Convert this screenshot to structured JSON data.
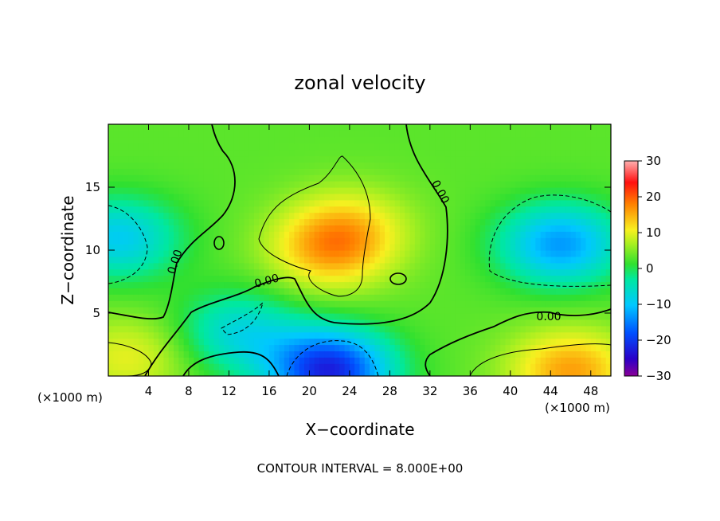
{
  "chart_data": {
    "type": "heatmap",
    "title": "zonal velocity",
    "xlabel": "X−coordinate",
    "ylabel": "Z−coordinate",
    "x_unit_left": "(×1000 m)",
    "x_unit_right": "(×1000 m)",
    "xlim": [
      0,
      50
    ],
    "ylim": [
      0,
      20
    ],
    "x_ticks": [
      "4",
      "8",
      "12",
      "16",
      "20",
      "24",
      "28",
      "32",
      "36",
      "40",
      "44",
      "48"
    ],
    "y_ticks": [
      "5",
      "10",
      "15"
    ],
    "colorbar": {
      "range": [
        -30,
        30
      ],
      "ticks": [
        "30",
        "20",
        "10",
        "0",
        "−10",
        "−20",
        "−30"
      ]
    },
    "contour_interval_note": "CONTOUR INTERVAL = 8.000E+00",
    "contour_labels": [
      "0.00",
      "0.00",
      "0.00",
      "0.00"
    ],
    "features": [
      {
        "x": 22,
        "z": 10,
        "value": 14
      },
      {
        "x": 24,
        "z": 12,
        "value": 10
      },
      {
        "x": 45,
        "z": 10.5,
        "value": -13
      },
      {
        "x": 1,
        "z": 11,
        "value": -9
      },
      {
        "x": 22,
        "z": 0.5,
        "value": -22
      },
      {
        "x": 46,
        "z": 0.5,
        "value": 16
      },
      {
        "x": 2,
        "z": 1.5,
        "value": 10
      },
      {
        "x": 13,
        "z": 3.5,
        "value": -7
      },
      {
        "x": 28,
        "z": 16,
        "value": 3
      }
    ],
    "background_value": 3,
    "grid": false
  }
}
